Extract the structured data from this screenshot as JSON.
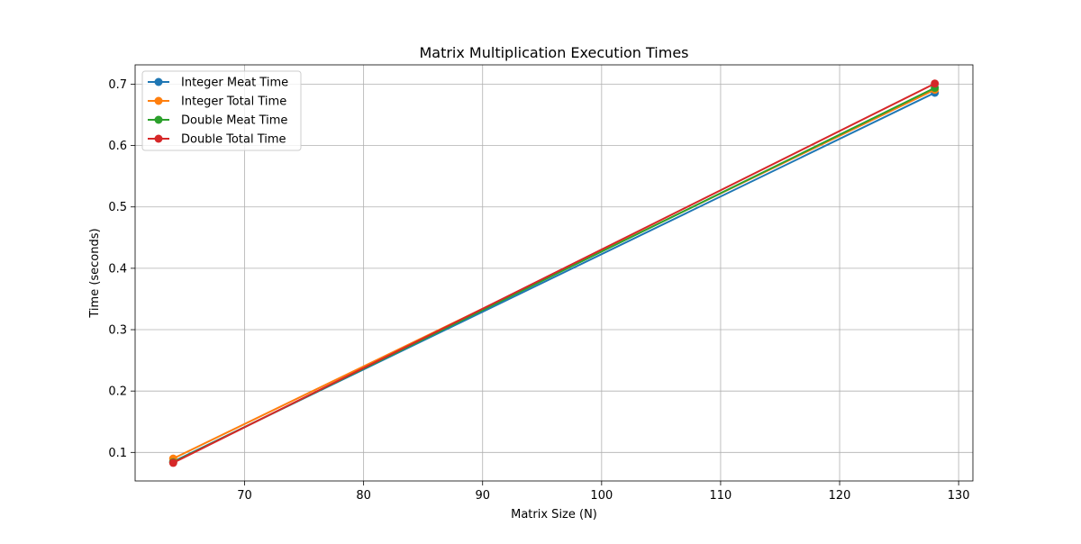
{
  "chart_data": {
    "type": "line",
    "title": "Matrix Multiplication Execution Times",
    "xlabel": "Matrix Size (N)",
    "ylabel": "Time (seconds)",
    "x": [
      64,
      128
    ],
    "xlim": [
      60.8,
      131.2
    ],
    "ylim": [
      0.0535,
      0.7315
    ],
    "xticks": [
      70,
      80,
      90,
      100,
      110,
      120,
      130
    ],
    "yticks": [
      0.1,
      0.2,
      0.3,
      0.4,
      0.5,
      0.6,
      0.7
    ],
    "xtick_labels": [
      "70",
      "80",
      "90",
      "100",
      "110",
      "120",
      "130"
    ],
    "ytick_labels": [
      "0.1",
      "0.2",
      "0.3",
      "0.4",
      "0.5",
      "0.6",
      "0.7"
    ],
    "grid": true,
    "legend_position": "upper-left",
    "series": [
      {
        "name": "Integer Meat Time",
        "values": [
          0.085,
          0.686
        ],
        "color": "#1f77b4"
      },
      {
        "name": "Integer Total Time",
        "values": [
          0.09,
          0.691
        ],
        "color": "#ff7f0e"
      },
      {
        "name": "Double Meat Time",
        "values": [
          0.084,
          0.694
        ],
        "color": "#2ca02c"
      },
      {
        "name": "Double Total Time",
        "values": [
          0.083,
          0.701
        ],
        "color": "#d62728"
      }
    ]
  }
}
